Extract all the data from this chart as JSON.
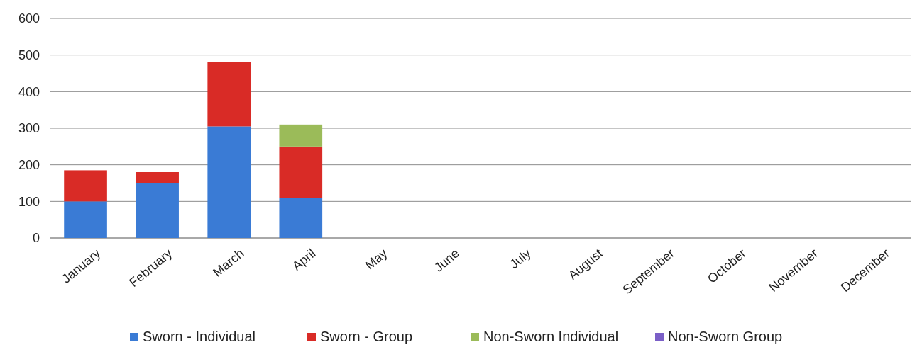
{
  "chart_data": {
    "type": "bar",
    "stacked": true,
    "categories": [
      "January",
      "February",
      "March",
      "April",
      "May",
      "June",
      "July",
      "August",
      "September",
      "October",
      "November",
      "December"
    ],
    "series": [
      {
        "name": "Sworn - Individual",
        "color": "#3a7bd5",
        "values": [
          100,
          150,
          305,
          110,
          null,
          null,
          null,
          null,
          null,
          null,
          null,
          null
        ]
      },
      {
        "name": "Sworn - Group",
        "color": "#d92b26",
        "values": [
          85,
          30,
          175,
          140,
          null,
          null,
          null,
          null,
          null,
          null,
          null,
          null
        ]
      },
      {
        "name": "Non-Sworn Individual",
        "color": "#9bbb59",
        "values": [
          null,
          null,
          null,
          60,
          null,
          null,
          null,
          null,
          null,
          null,
          null,
          null
        ]
      },
      {
        "name": "Non-Sworn Group",
        "color": "#7b5fc7",
        "values": [
          null,
          null,
          null,
          null,
          null,
          null,
          null,
          null,
          null,
          null,
          null,
          null
        ]
      }
    ],
    "ylim": [
      0,
      600
    ],
    "yticks": [
      0,
      100,
      200,
      300,
      400,
      500,
      600
    ],
    "grid": "y",
    "legend": "bottom"
  }
}
